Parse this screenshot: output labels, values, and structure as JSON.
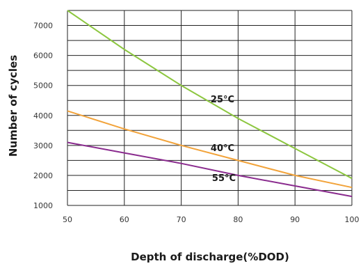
{
  "chart_data": {
    "type": "line",
    "title": "",
    "xlabel": "Depth of discharge(%DOD)",
    "ylabel": "Number of cycles",
    "xlim": [
      50,
      100
    ],
    "ylim": [
      1000,
      7500
    ],
    "x_ticks": [
      "50",
      "60",
      "70",
      "80",
      "90",
      "100"
    ],
    "y_ticks": [
      "1000",
      "2000",
      "3000",
      "4000",
      "5000",
      "6000",
      "7000"
    ],
    "grid": true,
    "series": [
      {
        "name": "25°C",
        "color": "#8cc63f",
        "x": [
          50,
          60,
          70,
          80,
          90,
          100
        ],
        "values": [
          7500,
          6200,
          5000,
          3900,
          2900,
          1900
        ]
      },
      {
        "name": "40°C",
        "color": "#f2a33a",
        "x": [
          50,
          60,
          70,
          80,
          90,
          100
        ],
        "values": [
          4150,
          3550,
          3000,
          2500,
          2000,
          1600
        ]
      },
      {
        "name": "55°C",
        "color": "#8a2b8e",
        "x": [
          50,
          60,
          70,
          80,
          90,
          100
        ],
        "values": [
          3100,
          2750,
          2400,
          2000,
          1650,
          1300
        ]
      }
    ]
  }
}
